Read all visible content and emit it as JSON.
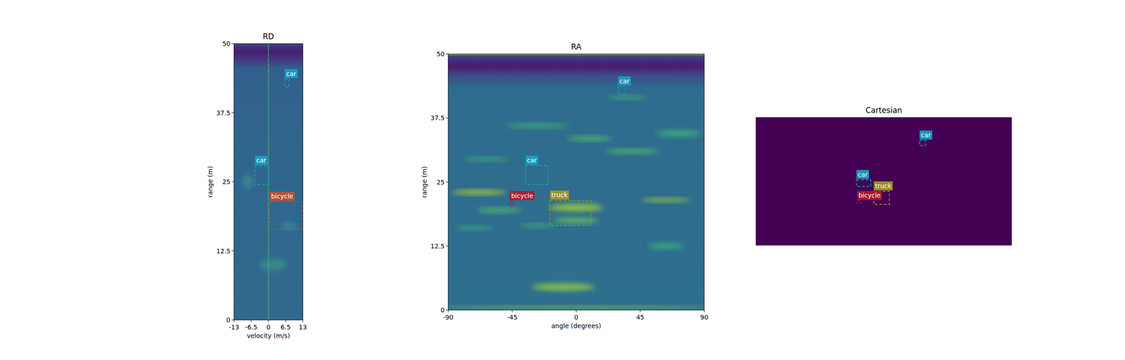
{
  "chart_data": [
    {
      "type": "heatmap",
      "title": "RD",
      "x_label": "velocity (m/s)",
      "y_label": "range (m)",
      "xlim": [
        -13,
        13
      ],
      "ylim": [
        0,
        50
      ],
      "xticks": [
        -13,
        -6.5,
        0,
        6.5,
        13
      ],
      "yticks": [
        0,
        12.5,
        25,
        37.5,
        50
      ],
      "objects": [
        {
          "label": "car",
          "color": "#17a2c4",
          "x": [
            6.2,
            7.8
          ],
          "y": [
            42.1,
            43.6
          ]
        },
        {
          "label": "car",
          "color": "#17a2c4",
          "x": [
            -5.1,
            0
          ],
          "y": [
            24.5,
            27.9
          ]
        },
        {
          "label": "bicycle",
          "color": "#c9502e",
          "x": [
            0.5,
            13
          ],
          "y": [
            16.4,
            21.4
          ]
        }
      ]
    },
    {
      "type": "heatmap",
      "title": "RA",
      "x_label": "angle (degrees)",
      "y_label": "range (m)",
      "xlim": [
        -90,
        90
      ],
      "ylim": [
        0,
        50
      ],
      "xticks": [
        -90,
        -45,
        0,
        45,
        90
      ],
      "yticks": [
        0,
        12.5,
        25,
        37.5,
        50
      ],
      "objects": [
        {
          "label": "car",
          "color": "#17a2c4",
          "x": [
            29.5,
            34.5
          ],
          "y": [
            42.2,
            43.7
          ]
        },
        {
          "label": "car",
          "color": "#17a2c4",
          "x": [
            -35.6,
            -19.9
          ],
          "y": [
            24.5,
            28.2
          ]
        },
        {
          "label": "bicycle",
          "color": "#b0182c",
          "x": [
            -46.7,
            -44.1
          ],
          "y": [
            20.3,
            21.3
          ]
        },
        {
          "label": "truck",
          "color": "#a59b22",
          "x": [
            -18.4,
            10.3
          ],
          "y": [
            16.5,
            21.4
          ]
        }
      ]
    },
    {
      "type": "heatmap",
      "title": "Cartesian",
      "tick_labels": false,
      "xlim": [
        -50,
        50
      ],
      "ylim": [
        0,
        50
      ],
      "objects": [
        {
          "label": "car",
          "color": "#17a2c4",
          "x": [
            14.0,
            16.3
          ],
          "y": [
            39.0,
            41.0
          ]
        },
        {
          "label": "car",
          "color": "#17a2c4",
          "x": [
            -10.7,
            -5.1
          ],
          "y": [
            23.0,
            25.6
          ]
        },
        {
          "label": "truck",
          "color": "#a59b22",
          "x": [
            -3.9,
            2.2
          ],
          "y": [
            16.0,
            21.1
          ]
        },
        {
          "label": "bicycle",
          "color": "#b0182c",
          "x": [
            -10.4,
            -9.0
          ],
          "y": [
            16.4,
            17.4
          ]
        }
      ]
    }
  ]
}
